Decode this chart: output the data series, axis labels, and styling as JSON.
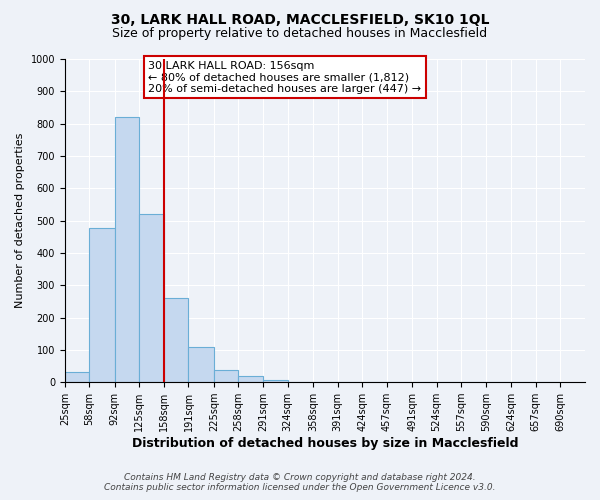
{
  "title": "30, LARK HALL ROAD, MACCLESFIELD, SK10 1QL",
  "subtitle": "Size of property relative to detached houses in Macclesfield",
  "xlabel": "Distribution of detached houses by size in Macclesfield",
  "ylabel": "Number of detached properties",
  "bar_edges": [
    25,
    58,
    92,
    125,
    158,
    191,
    225,
    258,
    291,
    324,
    358,
    391,
    424,
    457,
    491,
    524,
    557,
    590,
    624,
    657,
    690
  ],
  "bar_heights": [
    33,
    476,
    820,
    519,
    262,
    108,
    38,
    18,
    8,
    0,
    0,
    0,
    0,
    0,
    0,
    0,
    0,
    0,
    0,
    0
  ],
  "bar_color": "#c5d8ef",
  "bar_edge_color": "#6aaed6",
  "property_line_x": 158,
  "property_line_color": "#cc0000",
  "annotation_title": "30 LARK HALL ROAD: 156sqm",
  "annotation_line1": "← 80% of detached houses are smaller (1,812)",
  "annotation_line2": "20% of semi-detached houses are larger (447) →",
  "annotation_box_color": "white",
  "annotation_box_edge_color": "#cc0000",
  "ylim": [
    0,
    1000
  ],
  "yticks": [
    0,
    100,
    200,
    300,
    400,
    500,
    600,
    700,
    800,
    900,
    1000
  ],
  "tick_labels": [
    "25sqm",
    "58sqm",
    "92sqm",
    "125sqm",
    "158sqm",
    "191sqm",
    "225sqm",
    "258sqm",
    "291sqm",
    "324sqm",
    "358sqm",
    "391sqm",
    "424sqm",
    "457sqm",
    "491sqm",
    "524sqm",
    "557sqm",
    "590sqm",
    "624sqm",
    "657sqm",
    "690sqm"
  ],
  "footer1": "Contains HM Land Registry data © Crown copyright and database right 2024.",
  "footer2": "Contains public sector information licensed under the Open Government Licence v3.0.",
  "bg_color": "#eef2f8",
  "grid_color": "#ffffff",
  "title_fontsize": 10,
  "subtitle_fontsize": 9,
  "xlabel_fontsize": 9,
  "ylabel_fontsize": 8,
  "tick_fontsize": 7,
  "annotation_fontsize": 8,
  "footer_fontsize": 6.5
}
